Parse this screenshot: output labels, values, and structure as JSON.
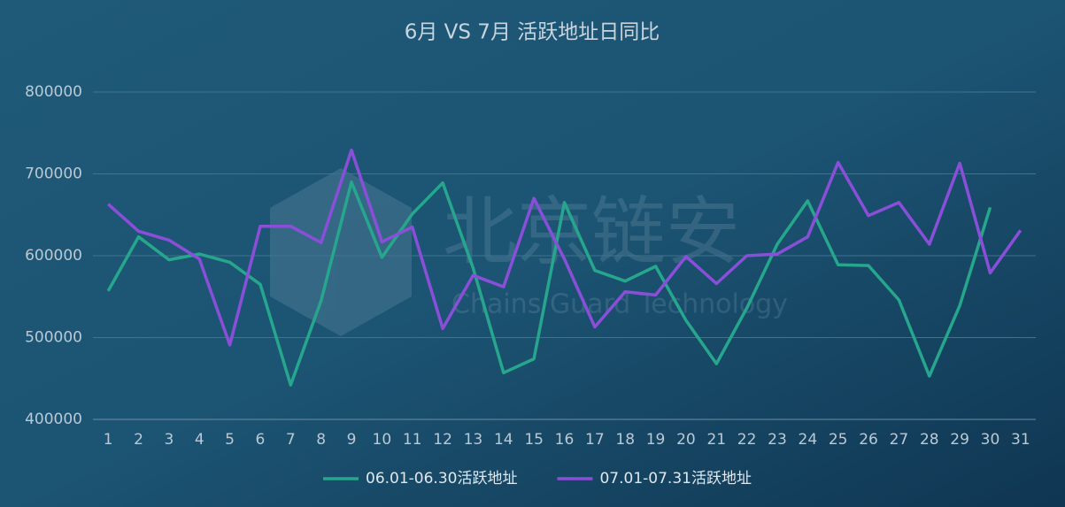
{
  "chart_data": {
    "type": "line",
    "title": "6月 VS 7月 活跃地址日同比",
    "watermark": {
      "name": "北京链安",
      "subtitle": "Chains Guard Technology"
    },
    "categories": [
      "1",
      "2",
      "3",
      "4",
      "5",
      "6",
      "7",
      "8",
      "9",
      "10",
      "11",
      "12",
      "13",
      "14",
      "15",
      "16",
      "17",
      "18",
      "19",
      "20",
      "21",
      "22",
      "23",
      "24",
      "25",
      "26",
      "27",
      "28",
      "29",
      "30",
      "31"
    ],
    "series": [
      {
        "name": "06.01-06.30活跃地址",
        "color": "#26a68c",
        "values": [
          557000,
          623000,
          595000,
          602000,
          592000,
          565000,
          442000,
          545000,
          690000,
          598000,
          651000,
          689000,
          585000,
          457000,
          474000,
          665000,
          582000,
          569000,
          587000,
          521000,
          468000,
          536000,
          614000,
          667000,
          589000,
          588000,
          546000,
          453000,
          539000,
          659000,
          null
        ]
      },
      {
        "name": "07.01-07.31活跃地址",
        "color": "#8a4fd8",
        "values": [
          663000,
          630000,
          619000,
          596000,
          491000,
          636000,
          636000,
          616000,
          729000,
          617000,
          635000,
          511000,
          576000,
          562000,
          670000,
          596000,
          513000,
          556000,
          552000,
          599000,
          566000,
          600000,
          602000,
          623000,
          714000,
          649000,
          665000,
          614000,
          713000,
          579000,
          631000
        ]
      }
    ],
    "ylim": [
      400000,
      800000
    ],
    "yticks": [
      400000,
      500000,
      600000,
      700000,
      800000
    ],
    "grid": true,
    "legend": "bottom"
  }
}
